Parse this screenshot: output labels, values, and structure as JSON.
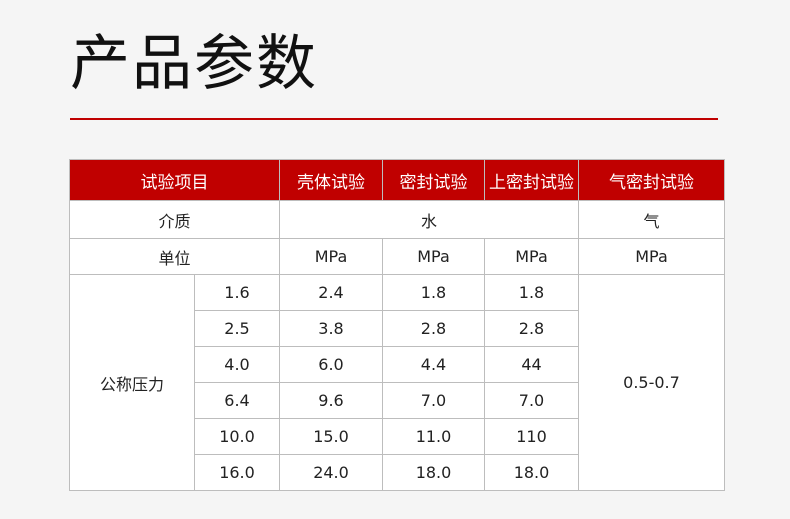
{
  "title": "产品参数",
  "colors": {
    "accent": "#c00000"
  },
  "table": {
    "headers": [
      "试验项目",
      "壳体试验",
      "密封试验",
      "上密封试验",
      "气密封试验"
    ],
    "medium_label": "介质",
    "medium_water": "水",
    "medium_gas": "气",
    "unit_label": "单位",
    "units": [
      "MPa",
      "MPa",
      "MPa",
      "MPa"
    ],
    "pressure_label": "公称压力",
    "gas_seal_value": "0.5-0.7",
    "rows": [
      [
        "1.6",
        "2.4",
        "1.8",
        "1.8"
      ],
      [
        "2.5",
        "3.8",
        "2.8",
        "2.8"
      ],
      [
        "4.0",
        "6.0",
        "4.4",
        "44"
      ],
      [
        "6.4",
        "9.6",
        "7.0",
        "7.0"
      ],
      [
        "10.0",
        "15.0",
        "11.0",
        "110"
      ],
      [
        "16.0",
        "24.0",
        "18.0",
        "18.0"
      ]
    ]
  }
}
